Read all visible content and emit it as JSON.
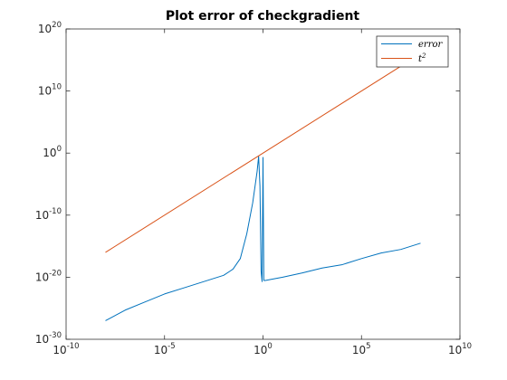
{
  "chart_data": {
    "type": "line",
    "title": "Plot error of checkgradient",
    "xlabel": "",
    "ylabel": "",
    "xscale": "log",
    "yscale": "log",
    "xlim": [
      1e-10,
      10000000000.0
    ],
    "ylim": [
      1e-30,
      1e+20
    ],
    "grid": false,
    "legend_position": "top-right",
    "x_ticks": [
      {
        "base": "10",
        "exp": "-10"
      },
      {
        "base": "10",
        "exp": "-5"
      },
      {
        "base": "10",
        "exp": "0"
      },
      {
        "base": "10",
        "exp": "5"
      },
      {
        "base": "10",
        "exp": "10"
      }
    ],
    "y_ticks": [
      {
        "base": "10",
        "exp": "-30"
      },
      {
        "base": "10",
        "exp": "-20"
      },
      {
        "base": "10",
        "exp": "-10"
      },
      {
        "base": "10",
        "exp": "0"
      },
      {
        "base": "10",
        "exp": "10"
      },
      {
        "base": "10",
        "exp": "20"
      }
    ],
    "series": [
      {
        "name": "error",
        "legend_label": "error",
        "color": "#0072BD",
        "x": [
          1e-08,
          1e-07,
          1e-06,
          1e-05,
          0.0001,
          0.001,
          0.01,
          0.03,
          0.07,
          0.15,
          0.3,
          0.5,
          0.6,
          0.7,
          0.8,
          0.9,
          1.0,
          1.1,
          1.3,
          10,
          100,
          1000,
          10000.0,
          100000.0,
          1000000.0,
          10000000.0,
          100000000.0
        ],
        "y": [
          1e-27,
          5e-26,
          1e-24,
          2e-23,
          2e-22,
          2e-21,
          2e-20,
          2e-19,
          1e-17,
          1e-13,
          1e-08,
          0.001,
          0.3,
          5e-06,
          1e-19,
          2e-21,
          0.2,
          3e-21,
          3e-21,
          1e-20,
          5e-20,
          3e-19,
          1e-18,
          1e-17,
          8e-17,
          3e-16,
          3e-15
        ]
      },
      {
        "name": "t^2",
        "legend_label": "t",
        "legend_sup": "2",
        "color": "#D95319",
        "x": [
          1e-08,
          100000000.0
        ],
        "y": [
          1e-16,
          1e+16
        ]
      }
    ]
  }
}
